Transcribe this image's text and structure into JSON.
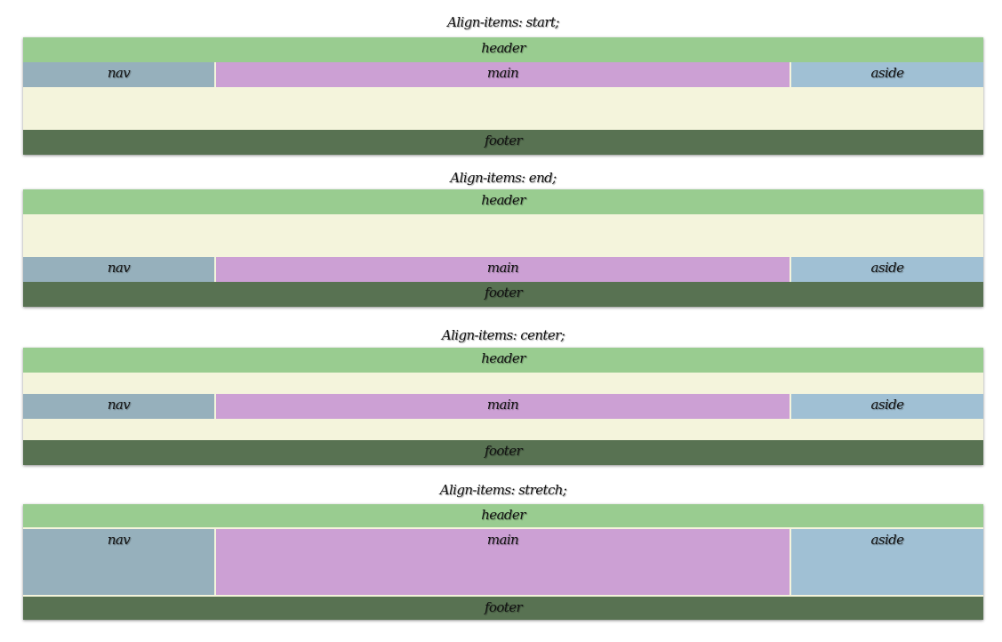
{
  "demos": [
    {
      "title": "Align-items: start;"
    },
    {
      "title": "Align-items: end;"
    },
    {
      "title": "Align-items: center;"
    },
    {
      "title": "Align-items: stretch;"
    }
  ],
  "regions": {
    "header": "header",
    "nav": "nav",
    "main": "main",
    "aside": "aside",
    "footer": "footer"
  },
  "colors": {
    "header": "#99cc90",
    "nav": "#96b0bc",
    "main": "#cca0d4",
    "aside": "#a0c0d4",
    "footer": "#587252",
    "container": "#f4f4dc"
  }
}
